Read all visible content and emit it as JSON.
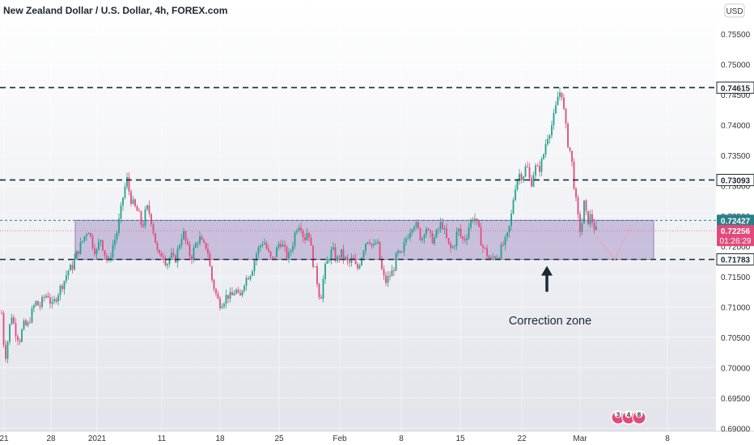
{
  "header": {
    "title": "New Zealand Dollar / U.S. Dollar, 4h, FOREX.com",
    "currency": "USD"
  },
  "annotation": {
    "label": "Correction zone"
  },
  "badges": [
    "3",
    "4",
    "8"
  ],
  "price_labels": {
    "resistance_high": "0.74615",
    "resistance_mid": "0.73093",
    "zone_top": "0.72427",
    "current": "0.72256",
    "countdown": "01:26:29",
    "zone_bottom": "0.71783"
  },
  "colors": {
    "up": "#22a18d",
    "down": "#e24a7b",
    "zone_fill": "#b3a4cf",
    "line": "#1b2b3a",
    "dotted": "#2a7f86"
  },
  "chart_data": {
    "type": "candlestick",
    "title": "New Zealand Dollar / U.S. Dollar, 4h, FOREX.com",
    "ylim": [
      0.6895,
      0.7606
    ],
    "y_ticks": [
      0.755,
      0.75,
      0.745,
      0.74,
      0.735,
      0.73,
      0.725,
      0.72,
      0.715,
      0.71,
      0.705,
      0.7,
      0.695,
      0.69
    ],
    "y_tick_labels": [
      "0.75500",
      "0.75000",
      "0.74500",
      "0.74000",
      "0.73500",
      "0.73000",
      "0.72500",
      "0.72000",
      "0.71500",
      "0.71000",
      "0.70500",
      "0.70000",
      "0.69500",
      "0.69000"
    ],
    "x_range": [
      0,
      928
    ],
    "x_ticks": [
      {
        "label": "21",
        "x": 5
      },
      {
        "label": "28",
        "x": 63
      },
      {
        "label": "2021",
        "x": 120
      },
      {
        "label": "11",
        "x": 200
      },
      {
        "label": "18",
        "x": 272
      },
      {
        "label": "25",
        "x": 345
      },
      {
        "label": "Feb",
        "x": 420
      },
      {
        "label": "8",
        "x": 496
      },
      {
        "label": "15",
        "x": 569
      },
      {
        "label": "22",
        "x": 645
      },
      {
        "label": "Mar",
        "x": 717
      },
      {
        "label": "8",
        "x": 825
      }
    ],
    "horizontal_levels": [
      {
        "value": 0.74615,
        "style": "dashed"
      },
      {
        "value": 0.73093,
        "style": "dashed"
      },
      {
        "value": 0.72427,
        "style": "dotted"
      },
      {
        "value": 0.71783,
        "style": "dashed"
      },
      {
        "value": 0.72256,
        "style": "current"
      }
    ],
    "zone": {
      "from": 0.71783,
      "to": 0.72427,
      "x_start": 93,
      "x_end": 808
    },
    "projection": [
      [
        738,
        0.7215
      ],
      [
        760,
        0.7178
      ],
      [
        780,
        0.7235
      ]
    ],
    "arrow": {
      "x": 676,
      "from": 0.7125,
      "to": 0.7165
    },
    "path": [
      [
        2,
        0.709
      ],
      [
        6,
        0.7012
      ],
      [
        10,
        0.7048
      ],
      [
        14,
        0.709
      ],
      [
        19,
        0.706
      ],
      [
        24,
        0.7045
      ],
      [
        29,
        0.707
      ],
      [
        34,
        0.7068
      ],
      [
        39,
        0.709
      ],
      [
        44,
        0.7108
      ],
      [
        49,
        0.71
      ],
      [
        54,
        0.7115
      ],
      [
        59,
        0.7122
      ],
      [
        64,
        0.71
      ],
      [
        69,
        0.7115
      ],
      [
        74,
        0.713
      ],
      [
        79,
        0.7142
      ],
      [
        84,
        0.716
      ],
      [
        89,
        0.7165
      ],
      [
        94,
        0.7185
      ],
      [
        99,
        0.72
      ],
      [
        104,
        0.7215
      ],
      [
        109,
        0.723
      ],
      [
        114,
        0.7205
      ],
      [
        119,
        0.7188
      ],
      [
        124,
        0.7215
      ],
      [
        129,
        0.719
      ],
      [
        134,
        0.717
      ],
      [
        139,
        0.72
      ],
      [
        144,
        0.722
      ],
      [
        149,
        0.7255
      ],
      [
        153,
        0.729
      ],
      [
        157,
        0.731
      ],
      [
        161,
        0.728
      ],
      [
        166,
        0.7265
      ],
      [
        171,
        0.7255
      ],
      [
        176,
        0.723
      ],
      [
        181,
        0.7265
      ],
      [
        186,
        0.725
      ],
      [
        191,
        0.7215
      ],
      [
        196,
        0.718
      ],
      [
        201,
        0.719
      ],
      [
        206,
        0.717
      ],
      [
        211,
        0.7185
      ],
      [
        216,
        0.7175
      ],
      [
        221,
        0.72
      ],
      [
        226,
        0.7225
      ],
      [
        231,
        0.72
      ],
      [
        236,
        0.718
      ],
      [
        241,
        0.72
      ],
      [
        246,
        0.7215
      ],
      [
        251,
        0.72
      ],
      [
        256,
        0.72
      ],
      [
        261,
        0.715
      ],
      [
        266,
        0.7125
      ],
      [
        271,
        0.7105
      ],
      [
        276,
        0.711
      ],
      [
        281,
        0.712
      ],
      [
        286,
        0.7115
      ],
      [
        291,
        0.713
      ],
      [
        296,
        0.711
      ],
      [
        301,
        0.714
      ],
      [
        306,
        0.715
      ],
      [
        311,
        0.716
      ],
      [
        316,
        0.7185
      ],
      [
        321,
        0.72
      ],
      [
        326,
        0.721
      ],
      [
        331,
        0.719
      ],
      [
        336,
        0.7175
      ],
      [
        341,
        0.719
      ],
      [
        346,
        0.721
      ],
      [
        351,
        0.7195
      ],
      [
        356,
        0.718
      ],
      [
        361,
        0.72
      ],
      [
        366,
        0.723
      ],
      [
        371,
        0.724
      ],
      [
        376,
        0.721
      ],
      [
        381,
        0.723
      ],
      [
        386,
        0.718
      ],
      [
        391,
        0.715
      ],
      [
        396,
        0.711
      ],
      [
        401,
        0.716
      ],
      [
        406,
        0.718
      ],
      [
        411,
        0.7195
      ],
      [
        416,
        0.7175
      ],
      [
        421,
        0.719
      ],
      [
        426,
        0.718
      ],
      [
        431,
        0.717
      ],
      [
        436,
        0.718
      ],
      [
        441,
        0.716
      ],
      [
        446,
        0.718
      ],
      [
        451,
        0.7205
      ],
      [
        456,
        0.7215
      ],
      [
        461,
        0.7195
      ],
      [
        466,
        0.721
      ],
      [
        471,
        0.7165
      ],
      [
        476,
        0.714
      ],
      [
        481,
        0.715
      ],
      [
        486,
        0.716
      ],
      [
        491,
        0.719
      ],
      [
        496,
        0.718
      ],
      [
        501,
        0.721
      ],
      [
        506,
        0.7225
      ],
      [
        511,
        0.724
      ],
      [
        516,
        0.723
      ],
      [
        521,
        0.721
      ],
      [
        526,
        0.7235
      ],
      [
        531,
        0.7215
      ],
      [
        536,
        0.721
      ],
      [
        541,
        0.7225
      ],
      [
        546,
        0.724
      ],
      [
        551,
        0.7215
      ],
      [
        556,
        0.7195
      ],
      [
        561,
        0.72
      ],
      [
        566,
        0.723
      ],
      [
        571,
        0.721
      ],
      [
        576,
        0.7215
      ],
      [
        581,
        0.724
      ],
      [
        586,
        0.725
      ],
      [
        591,
        0.723
      ],
      [
        596,
        0.72
      ],
      [
        601,
        0.719
      ],
      [
        606,
        0.7175
      ],
      [
        611,
        0.7185
      ],
      [
        616,
        0.7185
      ],
      [
        621,
        0.72
      ],
      [
        626,
        0.721
      ],
      [
        631,
        0.724
      ],
      [
        636,
        0.7295
      ],
      [
        641,
        0.732
      ],
      [
        646,
        0.7315
      ],
      [
        651,
        0.7335
      ],
      [
        656,
        0.73
      ],
      [
        661,
        0.733
      ],
      [
        666,
        0.7325
      ],
      [
        671,
        0.7345
      ],
      [
        676,
        0.738
      ],
      [
        681,
        0.7395
      ],
      [
        686,
        0.742
      ],
      [
        690,
        0.745
      ],
      [
        694,
        0.7458
      ],
      [
        698,
        0.741
      ],
      [
        702,
        0.737
      ],
      [
        706,
        0.735
      ],
      [
        710,
        0.7295
      ],
      [
        714,
        0.725
      ],
      [
        718,
        0.722
      ],
      [
        722,
        0.727
      ],
      [
        726,
        0.724
      ],
      [
        730,
        0.725
      ],
      [
        734,
        0.7232
      ],
      [
        737,
        0.7226
      ]
    ]
  }
}
